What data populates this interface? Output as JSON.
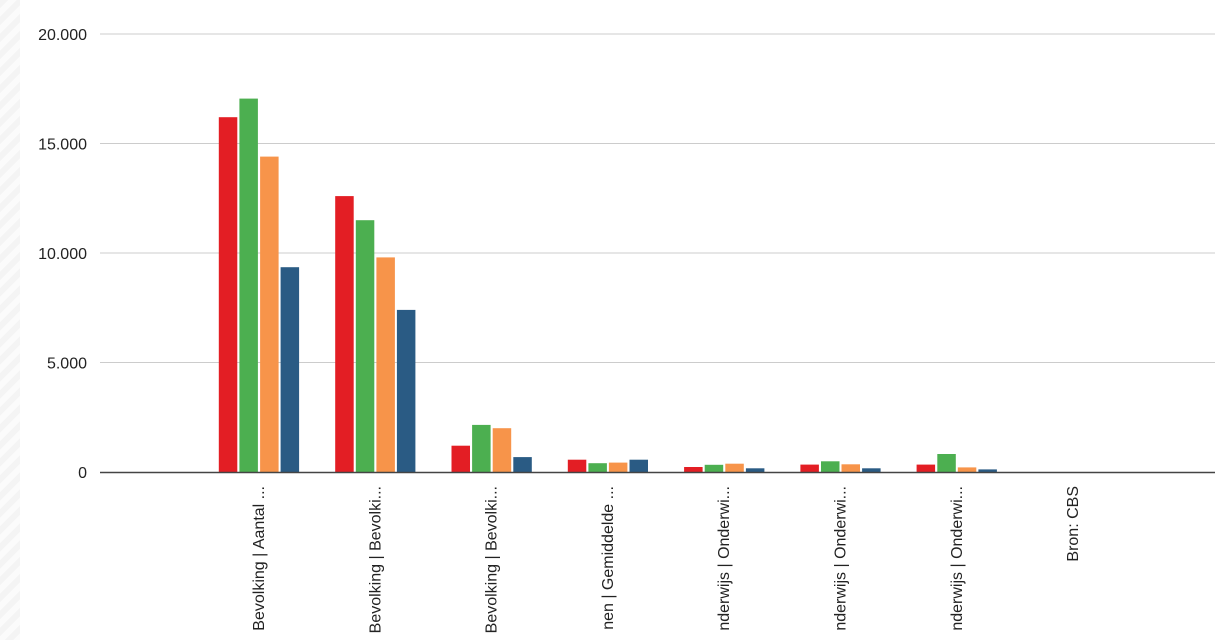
{
  "chart_data": {
    "type": "bar",
    "categories": [
      "Bevolking | Aantal ...",
      "Bevolking | Bevolki...",
      "Bevolking | Bevolki...",
      "nen | Gemiddelde ...",
      "nderwijs | Onderwi...",
      "nderwijs | Onderwi...",
      "nderwijs | Onderwi...",
      "Bron: CBS"
    ],
    "series": [
      {
        "color": "#e31e24",
        "values": [
          16200,
          12600,
          1200,
          560,
          230,
          340,
          340,
          null
        ]
      },
      {
        "color": "#4caf50",
        "values": [
          17050,
          11500,
          2150,
          400,
          330,
          490,
          820,
          null
        ]
      },
      {
        "color": "#f7944a",
        "values": [
          14400,
          9800,
          2000,
          430,
          380,
          350,
          210,
          null
        ]
      },
      {
        "color": "#2a5b84",
        "values": [
          9350,
          7400,
          680,
          560,
          170,
          170,
          120,
          null
        ]
      }
    ],
    "y_ticks": [
      "0",
      "5.000",
      "10.000",
      "15.000",
      "20.000"
    ],
    "ylim": [
      0,
      20000
    ],
    "grid": true,
    "legend": "none"
  }
}
